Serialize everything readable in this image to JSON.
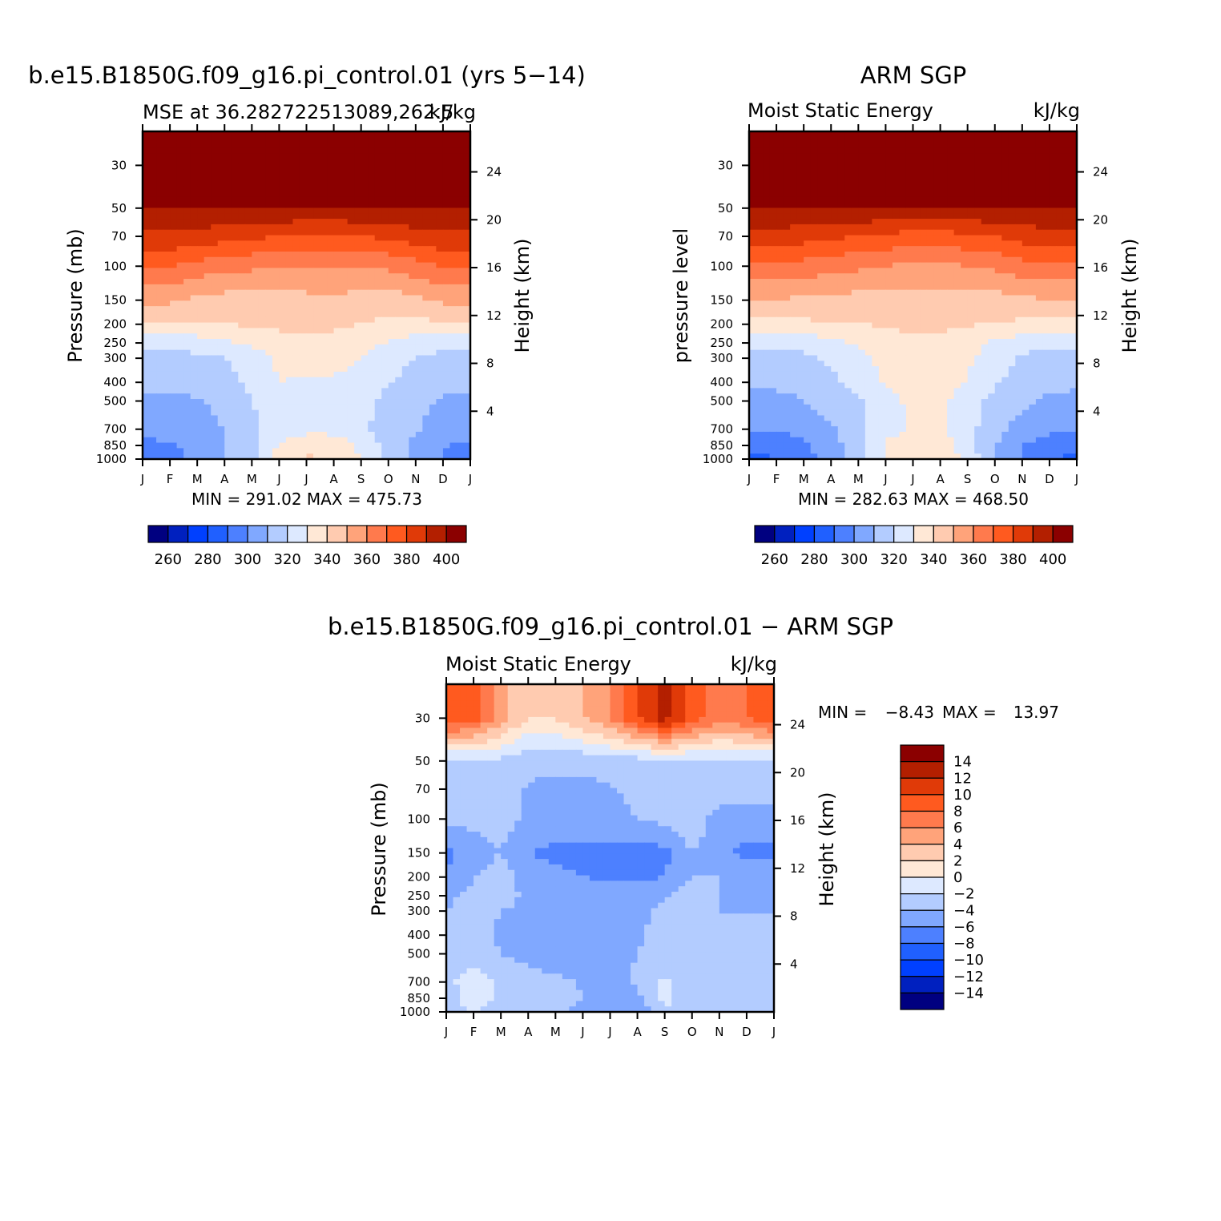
{
  "figure": {
    "months": [
      "J",
      "F",
      "M",
      "A",
      "M",
      "J",
      "J",
      "A",
      "S",
      "O",
      "N",
      "D",
      "J"
    ],
    "pressure_ticks": [
      "30",
      "50",
      "70",
      "100",
      "150",
      "200",
      "250",
      "300",
      "400",
      "500",
      "700",
      "850",
      "1000"
    ],
    "height_ticks": [
      "24",
      "20",
      "16",
      "12",
      "8",
      "4"
    ]
  },
  "chart_data": [
    {
      "id": "model",
      "type": "heatmap",
      "title": "b.e15.B1850G.f09_g16.pi_control.01 (yrs 5−14)",
      "subtitle_left": "MSE at 36.282722513089,262.5",
      "subtitle_right": "kJ/kg",
      "ylabel": "Pressure (mb)",
      "y2label": "Height (km)",
      "stats": "MIN = 291.02 MAX = 475.73",
      "min": 291.02,
      "max": 475.73,
      "x": [
        "J",
        "F",
        "M",
        "A",
        "M",
        "J",
        "J",
        "A",
        "S",
        "O",
        "N",
        "D",
        "J"
      ],
      "levels_mb": [
        30,
        50,
        70,
        100,
        150,
        200,
        250,
        300,
        400,
        500,
        700,
        850,
        1000
      ],
      "values": [
        [
          420,
          420,
          420,
          420,
          420,
          420,
          420,
          420,
          420,
          420,
          420,
          420,
          420
        ],
        [
          400,
          400,
          400,
          400,
          400,
          400,
          400,
          400,
          400,
          400,
          400,
          400,
          400
        ],
        [
          388,
          388,
          386,
          384,
          382,
          380,
          378,
          378,
          380,
          382,
          386,
          388,
          388
        ],
        [
          370,
          370,
          366,
          364,
          362,
          360,
          360,
          360,
          360,
          362,
          366,
          370,
          370
        ],
        [
          353,
          352,
          348,
          346,
          345,
          346,
          347,
          348,
          346,
          344,
          348,
          352,
          353
        ],
        [
          338,
          338,
          339,
          340,
          341,
          342,
          342,
          341,
          340,
          338,
          337,
          338,
          338
        ],
        [
          323,
          322,
          325,
          328,
          332,
          336,
          338,
          338,
          334,
          329,
          325,
          323,
          323
        ],
        [
          316,
          316,
          318,
          320,
          324,
          332,
          336,
          336,
          330,
          324,
          320,
          317,
          316
        ],
        [
          313,
          313,
          314,
          316,
          322,
          330,
          328,
          327,
          326,
          321,
          316,
          313,
          313
        ],
        [
          308,
          308,
          309,
          313,
          320,
          324,
          325,
          325,
          323,
          317,
          312,
          309,
          308
        ],
        [
          303,
          303,
          306,
          310,
          318,
          325,
          327,
          327,
          322,
          316,
          311,
          306,
          303
        ],
        [
          298,
          299,
          303,
          309,
          318,
          331,
          337,
          336,
          327,
          317,
          308,
          301,
          298
        ],
        [
          294,
          296,
          302,
          309,
          318,
          334,
          341,
          340,
          330,
          318,
          306,
          299,
          294
        ]
      ]
    },
    {
      "id": "obs",
      "type": "heatmap",
      "title": "ARM SGP",
      "subtitle_left": "Moist Static Energy",
      "subtitle_right": "kJ/kg",
      "ylabel": "pressure level",
      "y2label": "Height (km)",
      "stats": "MIN = 282.63 MAX = 468.50",
      "min": 282.63,
      "max": 468.5,
      "x": [
        "J",
        "F",
        "M",
        "A",
        "M",
        "J",
        "J",
        "A",
        "S",
        "O",
        "N",
        "D",
        "J"
      ],
      "levels_mb": [
        30,
        50,
        70,
        100,
        150,
        200,
        250,
        300,
        400,
        500,
        700,
        850,
        1000
      ],
      "values": [
        [
          420,
          420,
          420,
          420,
          420,
          420,
          420,
          420,
          420,
          420,
          420,
          420,
          420
        ],
        [
          400,
          400,
          400,
          400,
          400,
          400,
          400,
          400,
          400,
          400,
          400,
          400,
          400
        ],
        [
          386,
          386,
          384,
          382,
          380,
          378,
          376,
          376,
          378,
          380,
          384,
          386,
          386
        ],
        [
          368,
          368,
          366,
          364,
          362,
          360,
          358,
          358,
          360,
          362,
          366,
          368,
          368
        ],
        [
          350,
          350,
          348,
          347,
          346,
          346,
          346,
          346,
          346,
          346,
          348,
          350,
          350
        ],
        [
          337,
          337,
          338,
          339,
          340,
          341,
          342,
          342,
          341,
          339,
          338,
          337,
          337
        ],
        [
          322,
          322,
          324,
          327,
          331,
          336,
          338,
          338,
          334,
          328,
          324,
          322,
          322
        ],
        [
          316,
          316,
          318,
          322,
          327,
          334,
          337,
          337,
          332,
          324,
          319,
          316,
          316
        ],
        [
          312,
          312,
          314,
          318,
          323,
          331,
          336,
          336,
          329,
          321,
          316,
          313,
          312
        ],
        [
          307,
          307,
          310,
          314,
          319,
          327,
          332,
          332,
          325,
          317,
          312,
          308,
          307
        ],
        [
          301,
          301,
          304,
          309,
          316,
          327,
          331,
          331,
          323,
          314,
          306,
          302,
          301
        ],
        [
          293,
          294,
          298,
          306,
          315,
          331,
          336,
          336,
          325,
          310,
          300,
          295,
          293
        ],
        [
          287,
          290,
          296,
          304,
          315,
          332,
          340,
          339,
          326,
          311,
          299,
          291,
          287
        ]
      ]
    },
    {
      "id": "diff",
      "type": "heatmap",
      "title": "b.e15.B1850G.f09_g16.pi_control.01 − ARM SGP",
      "subtitle_left": "Moist Static Energy",
      "subtitle_right": "kJ/kg",
      "ylabel": "Pressure (mb)",
      "y2label": "Height (km)",
      "stats_min_label": "MIN =",
      "stats_min_value": "−8.43",
      "stats_max_label": "MAX =",
      "stats_max_value": "13.97",
      "min": -8.43,
      "max": 13.97,
      "x": [
        "J",
        "F",
        "M",
        "A",
        "M",
        "J",
        "J",
        "A",
        "S",
        "O",
        "N",
        "D",
        "J"
      ],
      "levels_mb": [
        30,
        50,
        70,
        100,
        150,
        200,
        250,
        300,
        400,
        500,
        700,
        850,
        1000
      ],
      "values": [
        [
          10,
          9,
          5,
          2,
          2,
          4,
          6,
          10,
          13,
          9,
          7,
          8,
          10
        ],
        [
          -2.5,
          -2.5,
          -2.5,
          -3.5,
          -3.5,
          -3.5,
          -3,
          -3,
          -2.5,
          -2.5,
          -2.5,
          -2.5,
          -2.5
        ],
        [
          -3,
          -3,
          -3,
          -4.2,
          -4.5,
          -4.5,
          -4.2,
          -3.5,
          -3,
          -2.5,
          -3,
          -3,
          -3
        ],
        [
          -3.5,
          -3.5,
          -3,
          -4.5,
          -5,
          -5,
          -4.5,
          -4,
          -3.5,
          -2.5,
          -5,
          -5,
          -5
        ],
        [
          -6.5,
          -5,
          -4,
          -6,
          -6.5,
          -6.5,
          -6.5,
          -7,
          -6.5,
          -4,
          -5.5,
          -6.5,
          -6.5
        ],
        [
          -6,
          -4,
          -3,
          -5,
          -5.5,
          -6,
          -6.5,
          -6.5,
          -6,
          -4,
          -4,
          -5,
          -5
        ],
        [
          -4.5,
          -3.5,
          -3,
          -4.5,
          -4.5,
          -4.5,
          -4.8,
          -5,
          -4.2,
          -2.5,
          -4,
          -4.5,
          -4.5
        ],
        [
          -4,
          -3,
          -4,
          -4.5,
          -4.5,
          -4.5,
          -4.5,
          -4.5,
          -3.5,
          -2.5,
          -4,
          -4,
          -4
        ],
        [
          -4,
          -3,
          -4.5,
          -5,
          -5,
          -5,
          -4.8,
          -4.5,
          -3,
          -3.5,
          -4,
          -4,
          -4
        ],
        [
          -3.5,
          -3,
          -4,
          -4.5,
          -5,
          -5,
          -4.5,
          -4,
          -3,
          -4,
          -3.5,
          -3.5,
          -3.5
        ],
        [
          -2.5,
          -1,
          -2.5,
          -3.5,
          -3.5,
          -4.2,
          -4.5,
          -3.8,
          -1.5,
          -3.5,
          -3,
          -3,
          -3
        ],
        [
          -3,
          -1,
          -2.5,
          -3,
          -3.5,
          -4,
          -5,
          -4.5,
          -1.5,
          -3,
          -2.5,
          -2.5,
          -2.5
        ],
        [
          -3,
          -2,
          -3,
          -3,
          -3.5,
          -4.5,
          -6,
          -5.5,
          -2,
          -3.5,
          -2,
          -2.5,
          -2.5
        ]
      ]
    }
  ],
  "colorbars": [
    {
      "id": "abs",
      "labels": [
        "260",
        "280",
        "300",
        "320",
        "340",
        "360",
        "380",
        "400"
      ],
      "colors": [
        "#000080",
        "#0020bf",
        "#0040ff",
        "#2060ff",
        "#4d80ff",
        "#80a8ff",
        "#b3ccff",
        "#dde9ff",
        "#ffe8d6",
        "#ffcbb0",
        "#ffa37a",
        "#ff7a4d",
        "#ff5a1f",
        "#e03a08",
        "#b31f00",
        "#8b0000"
      ],
      "levels": [
        255,
        260,
        265,
        270,
        275,
        280,
        285,
        290,
        295,
        300,
        305,
        310,
        315,
        320,
        325,
        330,
        335,
        340,
        345,
        350,
        355,
        360,
        365,
        370,
        375,
        380,
        385,
        390,
        395,
        400
      ],
      "bounds": [
        260,
        270,
        280,
        290,
        300,
        310,
        320,
        330,
        340,
        350,
        360,
        370,
        380,
        390,
        400
      ]
    },
    {
      "id": "diff",
      "labels": [
        "14",
        "12",
        "10",
        "8",
        "6",
        "4",
        "2",
        "0",
        "−2",
        "−4",
        "−6",
        "−8",
        "−10",
        "−12",
        "−14"
      ],
      "colors": [
        "#8b0000",
        "#b31f00",
        "#e03a08",
        "#ff5a1f",
        "#ff7a4d",
        "#ffa37a",
        "#ffcbb0",
        "#ffe8d6",
        "#dde9ff",
        "#b3ccff",
        "#80a8ff",
        "#4d80ff",
        "#2060ff",
        "#0040ff",
        "#0020bf",
        "#000080"
      ],
      "bounds": [
        14,
        12,
        10,
        8,
        6,
        4,
        2,
        0,
        -2,
        -4,
        -6,
        -8,
        -10,
        -12,
        -14
      ]
    }
  ]
}
